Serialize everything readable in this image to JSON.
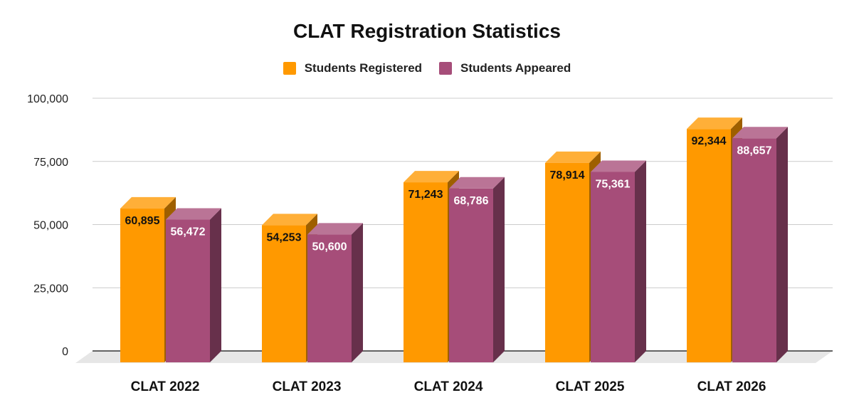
{
  "chart_data": {
    "type": "bar",
    "title": "CLAT Registration Statistics",
    "xlabel": "",
    "ylabel": "",
    "categories": [
      "CLAT 2022",
      "CLAT 2023",
      "CLAT 2024",
      "CLAT 2025",
      "CLAT 2026"
    ],
    "series": [
      {
        "name": "Students Registered",
        "values": [
          60895,
          54253,
          71243,
          78914,
          92344
        ],
        "labels": [
          "60,895",
          "54,253",
          "71,243",
          "78,914",
          "92,344"
        ],
        "color": "#FF9900",
        "label_color": "#111111"
      },
      {
        "name": "Students Appeared",
        "values": [
          56472,
          50600,
          68786,
          75361,
          88657
        ],
        "labels": [
          "56,472",
          "50,600",
          "68,786",
          "75,361",
          "88,657"
        ],
        "color": "#A64D79",
        "label_color": "#ffffff"
      }
    ],
    "ylim": [
      0,
      100000
    ],
    "yticks": [
      0,
      25000,
      50000,
      75000,
      100000
    ],
    "ytick_labels": [
      "0",
      "25,000",
      "50,000",
      "75,000",
      "100,000"
    ],
    "grid": true,
    "legend_position": "top-center",
    "style": "3d-column"
  }
}
